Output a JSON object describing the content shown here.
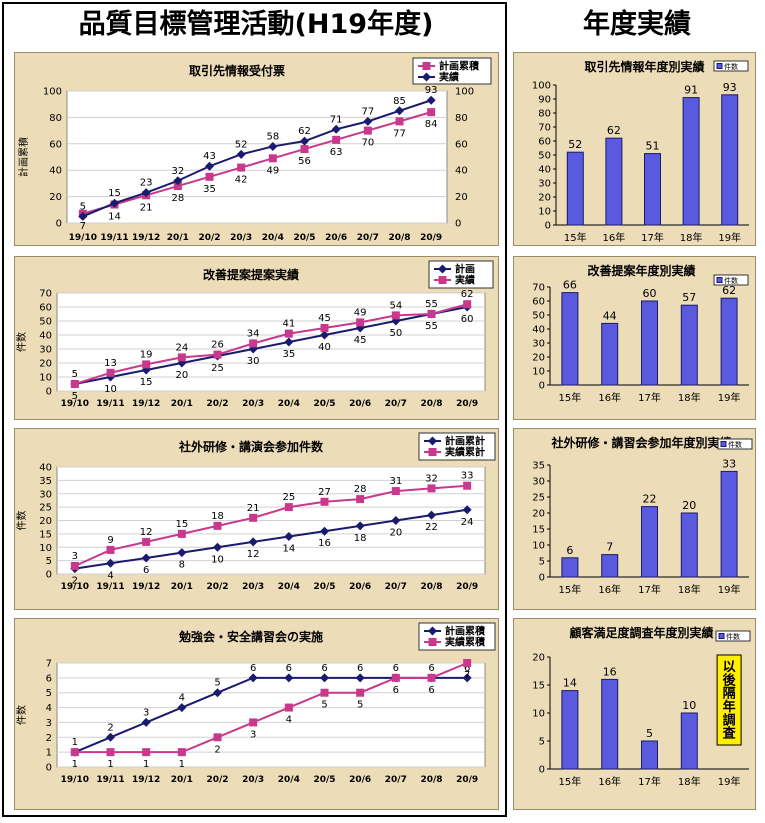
{
  "headings": {
    "left": "品質目標管理活動(H19年度)",
    "right": "年度実績"
  },
  "colors": {
    "plan_line": "#1a1a6e",
    "actual_line": "#c8388c",
    "bar_fill": "#5a5adf",
    "panel_bg": "#eddcb8",
    "note_fill": "#ffee00"
  },
  "chart_data": [
    {
      "type": "line",
      "title": "取引先情報受付票",
      "ylabel": "計画累積",
      "ylim": [
        0,
        100
      ],
      "yticks": [
        0,
        20,
        40,
        60,
        80,
        100
      ],
      "right_axis": true,
      "categories": [
        "19/10",
        "19/11",
        "19/12",
        "20/1",
        "20/2",
        "20/3",
        "20/4",
        "20/5",
        "20/6",
        "20/7",
        "20/8",
        "20/9"
      ],
      "series": [
        {
          "name": "計画累積",
          "marker": "square",
          "values": [
            7,
            14,
            21,
            28,
            35,
            42,
            49,
            56,
            63,
            70,
            77,
            84
          ]
        },
        {
          "name": "実績",
          "marker": "diamond",
          "values": [
            5,
            15,
            23,
            32,
            43,
            52,
            58,
            62,
            71,
            77,
            85,
            93
          ]
        }
      ],
      "legend": "top-right"
    },
    {
      "type": "line",
      "title": "改善提案提案実績",
      "ylabel": "件数",
      "ylim": [
        0,
        70
      ],
      "yticks": [
        0,
        10,
        20,
        30,
        40,
        50,
        60,
        70
      ],
      "categories": [
        "19/10",
        "19/11",
        "19/12",
        "20/1",
        "20/2",
        "20/3",
        "20/4",
        "20/5",
        "20/6",
        "20/7",
        "20/8",
        "20/9"
      ],
      "series": [
        {
          "name": "計画",
          "marker": "diamond",
          "values": [
            5,
            10,
            15,
            20,
            25,
            30,
            35,
            40,
            45,
            50,
            55,
            60
          ]
        },
        {
          "name": "実績",
          "marker": "square",
          "values": [
            5,
            13,
            19,
            24,
            26,
            34,
            41,
            45,
            49,
            54,
            55,
            62
          ]
        }
      ],
      "legend": "top-right"
    },
    {
      "type": "line",
      "title": "社外研修・講演会参加件数",
      "ylabel": "件数",
      "ylim": [
        0,
        40
      ],
      "yticks": [
        0,
        5,
        10,
        15,
        20,
        25,
        30,
        35,
        40
      ],
      "categories": [
        "19/10",
        "19/11",
        "19/12",
        "20/1",
        "20/2",
        "20/3",
        "20/4",
        "20/5",
        "20/6",
        "20/7",
        "20/8",
        "20/9"
      ],
      "series": [
        {
          "name": "計画累計",
          "marker": "diamond",
          "values": [
            2,
            4,
            6,
            8,
            10,
            12,
            14,
            16,
            18,
            20,
            22,
            24
          ]
        },
        {
          "name": "実績累計",
          "marker": "square",
          "values": [
            3,
            9,
            12,
            15,
            18,
            21,
            25,
            27,
            28,
            31,
            32,
            33
          ]
        }
      ],
      "legend": "top-right"
    },
    {
      "type": "line",
      "title": "勉強会・安全講習会の実施",
      "ylabel": "件数",
      "ylim": [
        0,
        7
      ],
      "yticks": [
        0,
        1,
        2,
        3,
        4,
        5,
        6,
        7
      ],
      "categories": [
        "19/10",
        "19/11",
        "19/12",
        "20/1",
        "20/2",
        "20/3",
        "20/4",
        "20/5",
        "20/6",
        "20/7",
        "20/8",
        "20/9"
      ],
      "series": [
        {
          "name": "計画累積",
          "marker": "diamond",
          "values": [
            1,
            2,
            3,
            4,
            5,
            6,
            6,
            6,
            6,
            6,
            6,
            6
          ]
        },
        {
          "name": "実績累積",
          "marker": "square",
          "values": [
            1,
            1,
            1,
            1,
            2,
            3,
            4,
            5,
            5,
            6,
            6,
            7
          ]
        }
      ],
      "legend": "top-right"
    },
    {
      "type": "bar",
      "title": "取引先情報年度別実績",
      "legend_label": "件数",
      "ylim": [
        0,
        100
      ],
      "yticks": [
        0,
        10,
        20,
        30,
        40,
        50,
        60,
        70,
        80,
        90,
        100
      ],
      "categories": [
        "15年",
        "16年",
        "17年",
        "18年",
        "19年"
      ],
      "values": [
        52,
        62,
        51,
        91,
        93
      ]
    },
    {
      "type": "bar",
      "title": "改善提案年度別実績",
      "legend_label": "件数",
      "ylim": [
        0,
        70
      ],
      "yticks": [
        0,
        10,
        20,
        30,
        40,
        50,
        60,
        70
      ],
      "categories": [
        "15年",
        "16年",
        "17年",
        "18年",
        "19年"
      ],
      "values": [
        66,
        44,
        60,
        57,
        62
      ]
    },
    {
      "type": "bar",
      "title": "社外研修・講習会参加年度別実績",
      "legend_label": "件数",
      "ylim": [
        0,
        35
      ],
      "yticks": [
        0,
        5,
        10,
        15,
        20,
        25,
        30,
        35
      ],
      "categories": [
        "15年",
        "16年",
        "17年",
        "18年",
        "19年"
      ],
      "values": [
        6,
        7,
        22,
        20,
        33
      ]
    },
    {
      "type": "bar",
      "title": "顧客満足度調査年度別実績",
      "legend_label": "件数",
      "ylim": [
        0,
        20
      ],
      "yticks": [
        0,
        5,
        10,
        15,
        20
      ],
      "categories": [
        "15年",
        "16年",
        "17年",
        "18年",
        "19年"
      ],
      "values": [
        14,
        16,
        5,
        10,
        null
      ],
      "note": "以後隔年調査"
    }
  ]
}
